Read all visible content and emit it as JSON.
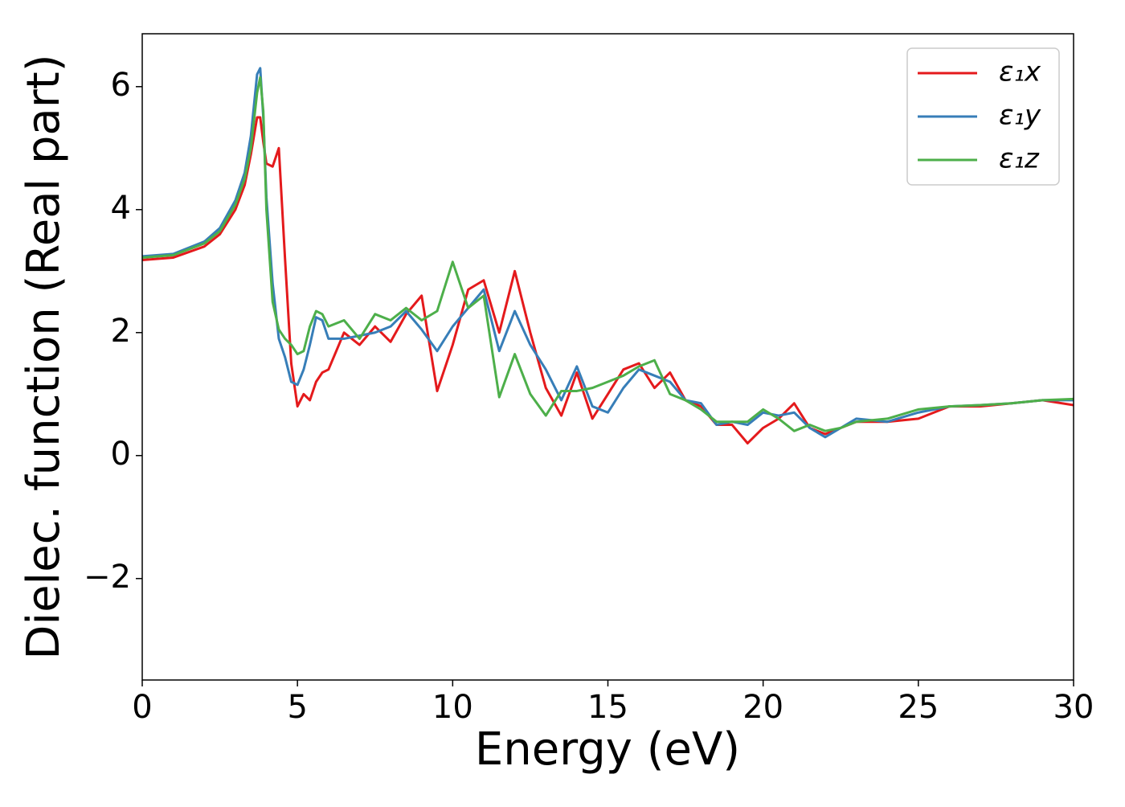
{
  "chart_data": {
    "type": "line",
    "xlabel": "Energy (eV)",
    "ylabel": "Dielec. function (Real part)",
    "x": [
      0,
      1,
      2,
      2.5,
      3,
      3.3,
      3.5,
      3.7,
      3.8,
      3.9,
      4.0,
      4.2,
      4.4,
      4.6,
      4.8,
      5,
      5.2,
      5.4,
      5.6,
      5.8,
      6,
      6.5,
      7,
      7.5,
      8,
      8.5,
      9,
      9.5,
      10,
      10.5,
      11,
      11.5,
      12,
      12.5,
      13,
      13.5,
      14,
      14.5,
      15,
      15.5,
      16,
      16.5,
      17,
      17.5,
      18,
      18.5,
      19,
      19.5,
      20,
      20.5,
      21,
      21.5,
      22,
      22.5,
      23,
      24,
      25,
      26,
      27,
      28,
      29,
      30
    ],
    "series": [
      {
        "name": "ε₁x",
        "color": "#e41a1c",
        "values": [
          3.18,
          3.22,
          3.4,
          3.6,
          4.0,
          4.4,
          4.9,
          5.5,
          5.5,
          5.1,
          4.75,
          4.7,
          5.0,
          3.2,
          1.5,
          0.8,
          1.0,
          0.9,
          1.2,
          1.35,
          1.4,
          2.0,
          1.8,
          2.1,
          1.85,
          2.3,
          2.6,
          1.05,
          1.8,
          2.7,
          2.85,
          2.0,
          3.0,
          2.0,
          1.1,
          0.65,
          1.35,
          0.6,
          1.0,
          1.4,
          1.5,
          1.1,
          1.35,
          0.9,
          0.8,
          0.5,
          0.5,
          0.2,
          0.45,
          0.6,
          0.85,
          0.45,
          0.35,
          0.45,
          0.55,
          0.55,
          0.6,
          0.8,
          0.8,
          0.85,
          0.9,
          0.82
        ]
      },
      {
        "name": "ε₁y",
        "color": "#377eb8",
        "values": [
          3.24,
          3.28,
          3.48,
          3.7,
          4.15,
          4.6,
          5.2,
          6.2,
          6.3,
          5.5,
          4.2,
          2.8,
          1.9,
          1.6,
          1.2,
          1.15,
          1.4,
          1.8,
          2.25,
          2.2,
          1.9,
          1.9,
          1.95,
          2.0,
          2.1,
          2.35,
          2.05,
          1.7,
          2.1,
          2.4,
          2.7,
          1.7,
          2.35,
          1.8,
          1.4,
          0.9,
          1.45,
          0.8,
          0.7,
          1.1,
          1.4,
          1.3,
          1.2,
          0.9,
          0.85,
          0.5,
          0.55,
          0.5,
          0.7,
          0.65,
          0.7,
          0.45,
          0.3,
          0.45,
          0.6,
          0.55,
          0.7,
          0.8,
          0.82,
          0.85,
          0.9,
          0.9
        ]
      },
      {
        "name": "ε₁z",
        "color": "#4daf4a",
        "values": [
          3.22,
          3.26,
          3.45,
          3.65,
          4.08,
          4.5,
          5.0,
          5.9,
          6.15,
          5.6,
          4.0,
          2.5,
          2.05,
          1.9,
          1.8,
          1.65,
          1.7,
          2.1,
          2.35,
          2.3,
          2.1,
          2.2,
          1.9,
          2.3,
          2.2,
          2.4,
          2.2,
          2.35,
          3.15,
          2.4,
          2.6,
          0.95,
          1.65,
          1.0,
          0.65,
          1.05,
          1.05,
          1.1,
          1.2,
          1.3,
          1.45,
          1.55,
          1.0,
          0.9,
          0.75,
          0.55,
          0.55,
          0.55,
          0.75,
          0.6,
          0.4,
          0.5,
          0.4,
          0.45,
          0.55,
          0.6,
          0.75,
          0.8,
          0.82,
          0.85,
          0.9,
          0.92
        ]
      }
    ],
    "xlim": [
      0,
      30
    ],
    "xticks": [
      0,
      5,
      10,
      15,
      20,
      25,
      30
    ],
    "ylim": [
      -3.65,
      6.86
    ],
    "yticks": [
      {
        "value": -2,
        "label": "−2"
      },
      0,
      2,
      4,
      6
    ],
    "legend": "upper right"
  }
}
